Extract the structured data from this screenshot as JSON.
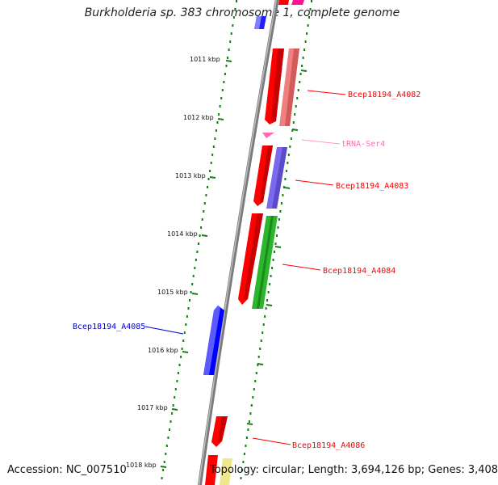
{
  "title": "Burkholderia sp. 383 chromosome 1, complete genome",
  "footer": {
    "accession": "Accession: NC_007510",
    "summary": "Topology: circular; Length: 3,694,126 bp; Genes: 3,408"
  },
  "colors": {
    "backbone": "#808080",
    "forward_tick_dots": "#1a7a1a",
    "red_cds": "#ff0000",
    "pink_cds": "#f08080",
    "purple_cds": "#7b68ee",
    "green_cds": "#2db52d",
    "blue_cds": "#0000ff",
    "trna": "#ff69b4",
    "magenta": "#ff1493",
    "yellow": "#f0e68c",
    "label_red": "#ff0000",
    "label_blue": "#0000cc",
    "label_pink": "#ff69b4"
  },
  "ticks": [
    {
      "label": "1011 kbp"
    },
    {
      "label": "1012 kbp"
    },
    {
      "label": "1013 kbp"
    },
    {
      "label": "1014 kbp"
    },
    {
      "label": "1015 kbp"
    },
    {
      "label": "1016 kbp"
    },
    {
      "label": "1017 kbp"
    },
    {
      "label": "1018 kbp"
    }
  ],
  "gene_labels": [
    {
      "name": "Bcep18194_A4082",
      "color_key": "label_red"
    },
    {
      "name": "tRNA-Ser4",
      "color_key": "label_pink"
    },
    {
      "name": "Bcep18194_A4083",
      "color_key": "label_red"
    },
    {
      "name": "Bcep18194_A4084",
      "color_key": "label_red"
    },
    {
      "name": "Bcep18194_A4085",
      "color_key": "label_blue"
    },
    {
      "name": "Bcep18194_A4086",
      "color_key": "label_red"
    }
  ]
}
